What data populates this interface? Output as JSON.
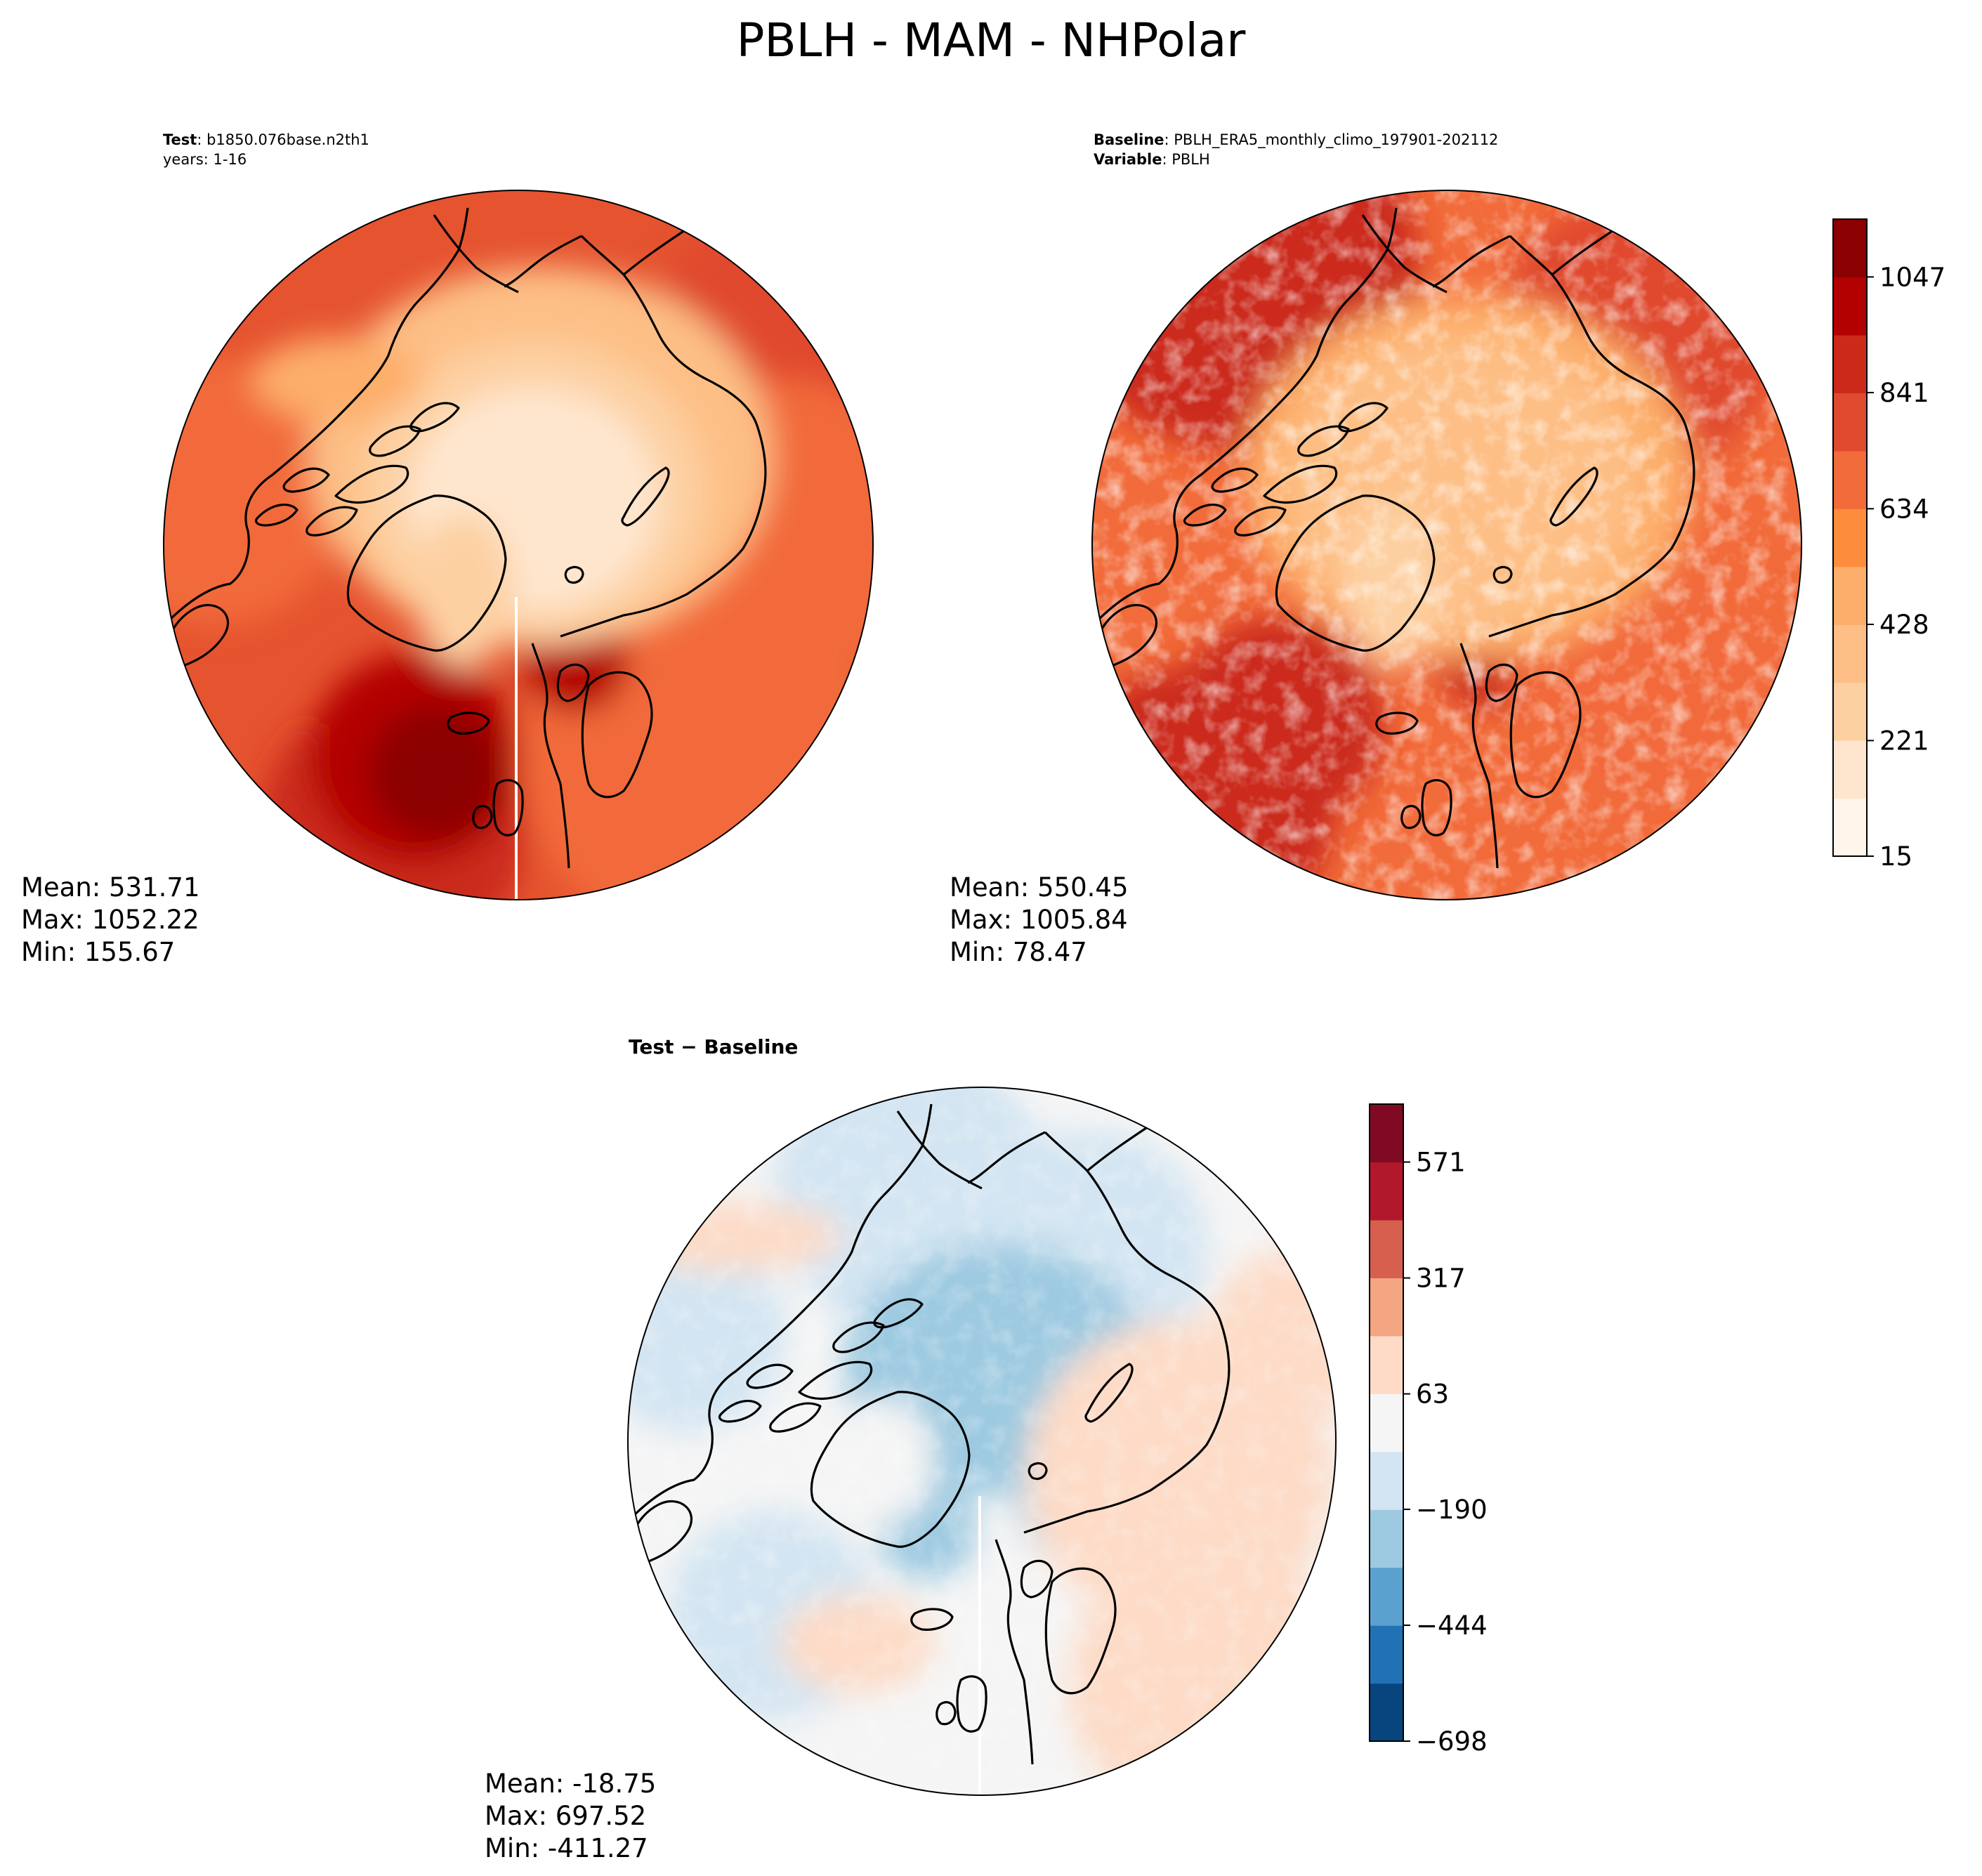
{
  "title": "PBLH - MAM - NHPolar",
  "panels": [
    {
      "key": "test",
      "header_lines": [
        {
          "bold": "Test",
          "text": ": b1850.076base.n2th1"
        },
        {
          "bold": "",
          "text": "years: 1-16"
        }
      ],
      "stats": {
        "mean": "Mean: 531.71",
        "max": "Max: 1052.22",
        "min": "Min: 155.67"
      }
    },
    {
      "key": "baseline",
      "header_lines": [
        {
          "bold": "Baseline",
          "text": ": PBLH_ERA5_monthly_climo_197901-202112"
        },
        {
          "bold": "Variable",
          "text": ": PBLH"
        }
      ],
      "stats": {
        "mean": "Mean: 550.45",
        "max": "Max: 1005.84",
        "min": "Min: 78.47"
      }
    },
    {
      "key": "diff",
      "header_lines": [
        {
          "bold": "Test − Baseline",
          "text": ""
        }
      ],
      "stats": {
        "mean": "Mean: -18.75",
        "max": "Max: 697.52",
        "min": "Min: -411.27"
      }
    }
  ],
  "colorbars": {
    "field": {
      "colormap": "Reds",
      "colors": [
        "#fff5eb",
        "#fee6ce",
        "#fdd0a2",
        "#fdbf86",
        "#fdae6b",
        "#fd8d3c",
        "#f26b3a",
        "#e04a2f",
        "#cb2a1b",
        "#b30000",
        "#8b0000"
      ],
      "ticks": [
        "15",
        "221",
        "428",
        "634",
        "841",
        "1047"
      ],
      "tick_values": [
        15,
        221,
        428,
        634,
        841,
        1047
      ],
      "range": [
        15,
        1150
      ]
    },
    "diff": {
      "colormap": "RdBu_r",
      "colors": [
        "#08457f",
        "#2171b5",
        "#5aa1cf",
        "#9ecae1",
        "#d3e5f2",
        "#f5f5f5",
        "#fddbc7",
        "#f4a582",
        "#d6604d",
        "#b2182b",
        "#800a24"
      ],
      "ticks": [
        "−698",
        "−444",
        "−190",
        "63",
        "317",
        "571"
      ],
      "tick_values": [
        -698,
        -444,
        -190,
        63,
        317,
        571
      ],
      "range": [
        -698,
        698
      ]
    }
  }
}
